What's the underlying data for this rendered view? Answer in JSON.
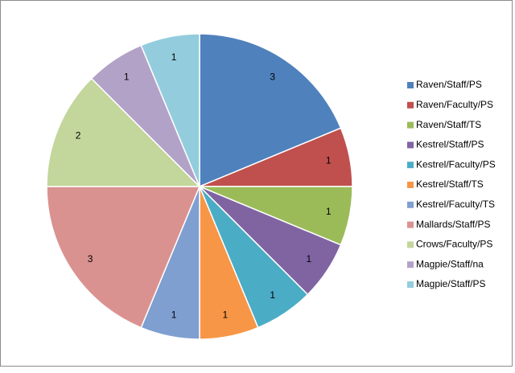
{
  "chart_data": {
    "type": "pie",
    "series": [
      {
        "name": "Raven/Staff/PS",
        "color": "#4f81bd",
        "values": [
          3
        ]
      },
      {
        "name": "Raven/Faculty/PS",
        "color": "#c0504d",
        "values": [
          1
        ]
      },
      {
        "name": "Raven/Staff/TS",
        "color": "#9bbb59",
        "values": [
          1
        ]
      },
      {
        "name": "Kestrel/Staff/PS",
        "color": "#8064a2",
        "values": [
          1
        ]
      },
      {
        "name": "Kestrel/Faculty/PS",
        "color": "#4bacc6",
        "values": [
          1
        ]
      },
      {
        "name": "Kestrel/Staff/TS",
        "color": "#f79646",
        "values": [
          1
        ]
      },
      {
        "name": "Kestrel/Faculty/TS",
        "color": "#7f9fd0",
        "values": [
          1
        ]
      },
      {
        "name": "Mallards/Staff/PS",
        "color": "#da9290",
        "values": [
          3
        ]
      },
      {
        "name": "Crows/Faculty/PS",
        "color": "#c3d69b",
        "values": [
          2
        ]
      },
      {
        "name": "Magpie/Staff/na",
        "color": "#b3a2c7",
        "values": [
          1
        ]
      },
      {
        "name": "Magpie/Staff/PS",
        "color": "#93cddd",
        "values": [
          1
        ]
      }
    ],
    "legend": "right"
  }
}
